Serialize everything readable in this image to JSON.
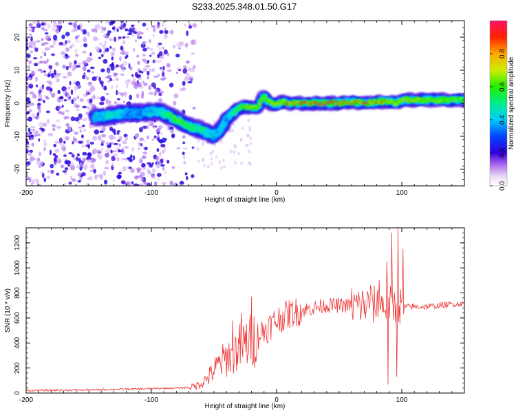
{
  "chart_data": [
    {
      "type": "heatmap",
      "title": "S233.2025.348.01.50.G17",
      "xlabel": "Height of straight line (km)",
      "ylabel": "Frequency (Hz)",
      "xlim": [
        -200,
        150
      ],
      "ylim": [
        -25,
        25
      ],
      "xticks": [
        -200,
        -100,
        0,
        100
      ],
      "yticks": [
        -20,
        -10,
        0,
        10,
        20
      ],
      "colorbar": {
        "label": "Normalized spectral amplitude",
        "range": [
          0,
          1
        ],
        "ticks": [
          "0.0",
          "0.2",
          "0.4",
          "0.6",
          "0.8"
        ]
      },
      "ridge": {
        "x": [
          -145,
          -138,
          -130,
          -120,
          -110,
          -100,
          -95,
          -90,
          -85,
          -80,
          -75,
          -70,
          -65,
          -60,
          -55,
          -50,
          -45,
          -40,
          -35,
          -30,
          -25,
          -20,
          -15,
          -10,
          -5,
          0,
          5,
          10,
          20,
          30,
          40,
          50,
          60,
          70,
          80,
          90,
          95,
          100,
          110,
          120,
          130,
          140,
          150
        ],
        "freq": [
          -4,
          -4,
          -3.5,
          -3,
          -3,
          -2.5,
          -2.5,
          -3,
          -4,
          -5,
          -6,
          -7,
          -7.5,
          -8,
          -9,
          -10,
          -8,
          -5,
          -3,
          -1.5,
          -1,
          -1.5,
          -1,
          2,
          0,
          -0.5,
          0.5,
          0,
          0,
          0,
          0,
          0,
          0.5,
          0,
          0.5,
          0.5,
          0,
          1,
          1,
          1,
          1,
          1,
          1
        ],
        "amplitude": [
          0.4,
          0.4,
          0.45,
          0.35,
          0.35,
          0.4,
          0.45,
          0.5,
          0.55,
          0.6,
          0.55,
          0.5,
          0.5,
          0.5,
          0.45,
          0.4,
          0.4,
          0.35,
          0.5,
          0.6,
          0.65,
          0.8,
          0.7,
          0.65,
          0.7,
          0.75,
          0.8,
          0.85,
          0.95,
          0.98,
          0.95,
          0.9,
          0.85,
          0.85,
          0.8,
          0.75,
          0.75,
          0.7,
          0.7,
          0.65,
          0.65,
          0.6,
          0.6
        ]
      }
    },
    {
      "type": "line",
      "title": "",
      "xlabel": "Height of straight line (km)",
      "ylabel": "SNR (10 * v/v)",
      "xlim": [
        -200,
        150
      ],
      "ylim": [
        0,
        1320
      ],
      "xticks": [
        -200,
        -100,
        0,
        100
      ],
      "yticks": [
        0,
        200,
        400,
        600,
        800,
        1000,
        1200
      ],
      "color": "#ee3333",
      "envelope": {
        "x": [
          -200,
          -150,
          -100,
          -80,
          -70,
          -65,
          -60,
          -55,
          -50,
          -45,
          -40,
          -35,
          -30,
          -25,
          -20,
          -15,
          -10,
          -5,
          0,
          5,
          10,
          20,
          30,
          40,
          50,
          60,
          70,
          80,
          90,
          95,
          100,
          110,
          120,
          130,
          140,
          150
        ],
        "snr": [
          20,
          25,
          35,
          40,
          45,
          55,
          80,
          120,
          180,
          240,
          280,
          320,
          360,
          390,
          420,
          460,
          500,
          540,
          580,
          610,
          630,
          660,
          680,
          700,
          700,
          700,
          700,
          700,
          700,
          700,
          690,
          690,
          690,
          700,
          710,
          715
        ]
      },
      "spikes": [
        {
          "x": -35,
          "snr": 580
        },
        {
          "x": -28,
          "snr": 640
        },
        {
          "x": -20,
          "snr": 770
        },
        {
          "x": 75,
          "snr": 860
        },
        {
          "x": 82,
          "snr": 900
        },
        {
          "x": 88,
          "snr": 1050
        },
        {
          "x": 92,
          "snr": 1280
        },
        {
          "x": 97,
          "snr": 1320
        },
        {
          "x": 101,
          "snr": 1150
        },
        {
          "x": 89,
          "snr": 70
        },
        {
          "x": 96,
          "snr": 130
        }
      ]
    }
  ]
}
